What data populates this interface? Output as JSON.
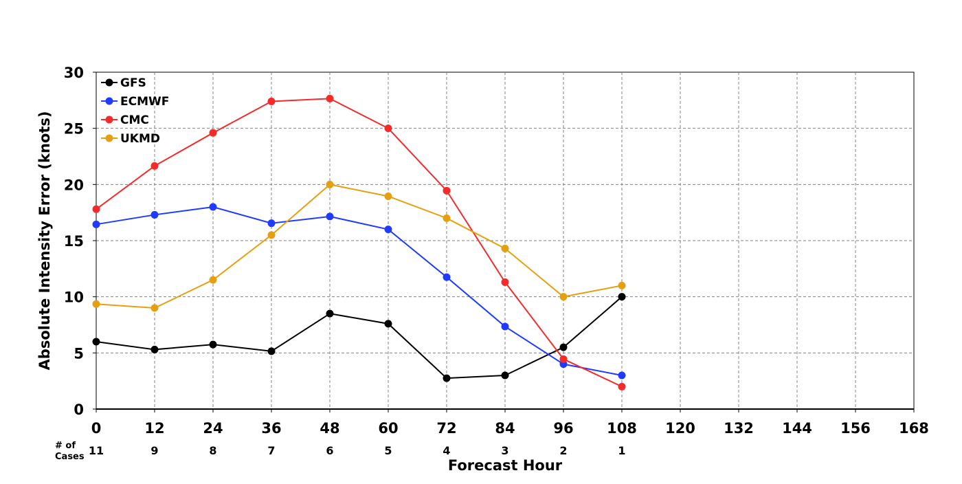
{
  "chart_data": {
    "type": "line",
    "xlabel": "Forecast Hour",
    "ylabel": "Absolute Intensity Error (knots)",
    "xlim": [
      0,
      168
    ],
    "ylim": [
      0,
      30
    ],
    "x_ticks": [
      0,
      12,
      24,
      36,
      48,
      60,
      72,
      84,
      96,
      108,
      120,
      132,
      144,
      156,
      168
    ],
    "y_ticks": [
      0,
      5,
      10,
      15,
      20,
      25,
      30
    ],
    "grid": true,
    "legend_position": "top-left",
    "x": [
      0,
      12,
      24,
      36,
      48,
      60,
      72,
      84,
      96,
      108
    ],
    "series": [
      {
        "name": "GFS",
        "color": "#000000",
        "values": [
          6.0,
          5.3,
          5.75,
          5.15,
          8.5,
          7.6,
          2.75,
          3.0,
          5.5,
          10.0
        ]
      },
      {
        "name": "ECMWF",
        "color": "#1f3bff",
        "values": [
          16.45,
          17.3,
          18.0,
          16.55,
          17.15,
          16.0,
          11.75,
          7.35,
          4.0,
          3.0
        ]
      },
      {
        "name": "CMC",
        "color": "#f52a2a",
        "values": [
          17.8,
          21.65,
          24.6,
          27.4,
          27.65,
          25.0,
          19.45,
          11.3,
          4.45,
          2.0
        ]
      },
      {
        "name": "UKMD",
        "color": "#e5a011",
        "values": [
          9.35,
          9.0,
          11.5,
          15.5,
          20.0,
          18.95,
          17.0,
          14.3,
          10.0,
          11.0
        ]
      }
    ],
    "cases_title": "# of\nCases",
    "cases": [
      {
        "x": 0,
        "label": "11"
      },
      {
        "x": 12,
        "label": "9"
      },
      {
        "x": 24,
        "label": "8"
      },
      {
        "x": 36,
        "label": "7"
      },
      {
        "x": 48,
        "label": "6"
      },
      {
        "x": 60,
        "label": "5"
      },
      {
        "x": 72,
        "label": "4"
      },
      {
        "x": 84,
        "label": "3"
      },
      {
        "x": 96,
        "label": "2"
      },
      {
        "x": 108,
        "label": "1"
      }
    ]
  }
}
